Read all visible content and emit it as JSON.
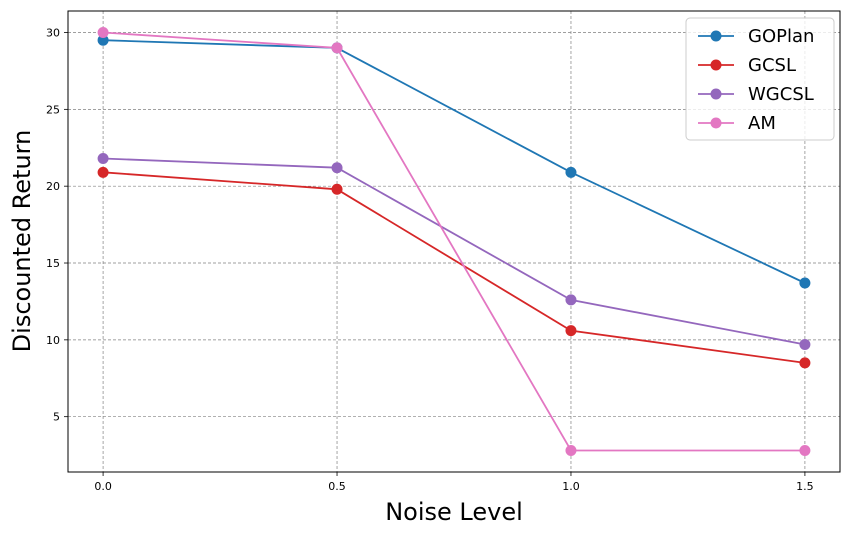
{
  "chart_data": {
    "type": "line",
    "title": "",
    "xlabel": "Noise Level",
    "ylabel": "Discounted Return",
    "x": [
      0.0,
      0.5,
      1.0,
      1.5
    ],
    "xticks": [
      "0.0",
      "0.5",
      "1.0",
      "1.5"
    ],
    "yticks": [
      "5",
      "10",
      "15",
      "20",
      "25",
      "30"
    ],
    "xlim": [
      -0.075,
      1.575
    ],
    "ylim": [
      1.4,
      31.4
    ],
    "grid": true,
    "legend_position": "top-right",
    "series": [
      {
        "name": "GOPlan",
        "color": "#1f77b4",
        "values": [
          29.5,
          29.0,
          20.9,
          13.7
        ]
      },
      {
        "name": "GCSL",
        "color": "#d62728",
        "values": [
          20.9,
          19.8,
          10.6,
          8.5
        ]
      },
      {
        "name": "WGCSL",
        "color": "#9467bd",
        "values": [
          21.8,
          21.2,
          12.6,
          9.7
        ]
      },
      {
        "name": "AM",
        "color": "#e377c2",
        "values": [
          30.0,
          29.0,
          2.8,
          2.8
        ]
      }
    ]
  }
}
